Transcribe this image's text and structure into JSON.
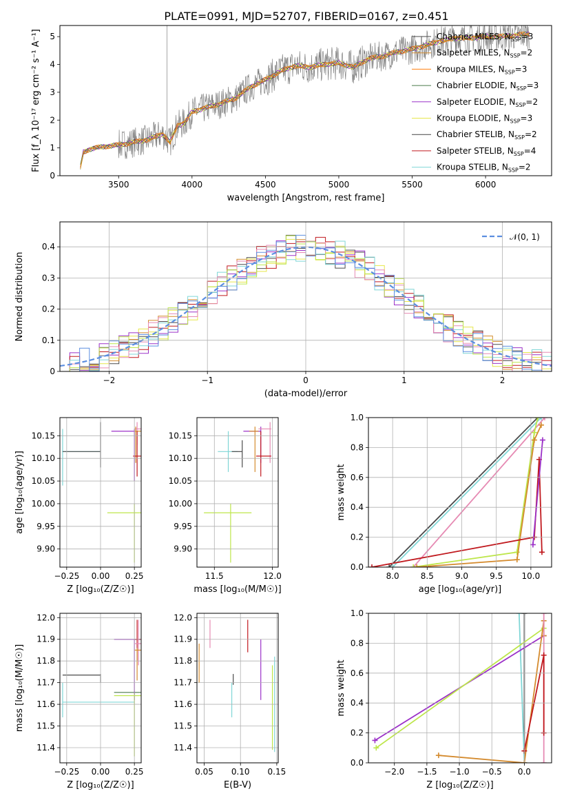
{
  "figure": {
    "title": "PLATE=0991, MJD=52707, FIBERID=0167, z=0.451"
  },
  "palette": {
    "Chabrier MILES": "#4a4a4a",
    "Salpeter MILES": "#d48a2d",
    "Kroupa MILES": "#ff7f0e",
    "Chabrier ELODIE": "#4a7a4a",
    "Salpeter ELODIE": "#9b30c8",
    "Kroupa ELODIE": "#e6e64a",
    "Chabrier STELIB": "#444444",
    "Salpeter STELIB": "#c0181d",
    "Kroupa STELIB": "#7fd6d6",
    "gaussian": "#5b8ee0",
    "data": "#808080",
    "pink": "#e68ab3",
    "lime": "#bde64a"
  },
  "chart_data": [
    {
      "id": "spectrum",
      "type": "line",
      "xlabel": "wavelength [Angstrom, rest frame]",
      "ylabel": "Flux [f_λ 10⁻¹⁷ erg cm⁻² s⁻¹ A⁻¹]",
      "xlim": [
        3100,
        6450
      ],
      "ylim": [
        0,
        5.4
      ],
      "xticks": [
        3500,
        4000,
        4500,
        5000,
        5500,
        6000
      ],
      "yticks": [
        0,
        1,
        2,
        3,
        4,
        5
      ],
      "grid": false,
      "legend_position": "top-right",
      "legend": [
        {
          "label": "Chabrier MILES, N",
          "sub": "SSP",
          "tail": "=3",
          "color": "#4a4a4a"
        },
        {
          "label": "Salpeter MILES, N",
          "sub": "SSP",
          "tail": "=2",
          "color": "#d48a2d"
        },
        {
          "label": "Kroupa MILES, N",
          "sub": "SSP",
          "tail": "=3",
          "color": "#ff7f0e"
        },
        {
          "label": "Chabrier ELODIE, N",
          "sub": "SSP",
          "tail": "=3",
          "color": "#4a7a4a"
        },
        {
          "label": "Salpeter ELODIE, N",
          "sub": "SSP",
          "tail": "=2",
          "color": "#9b30c8"
        },
        {
          "label": "Kroupa ELODIE, N",
          "sub": "SSP",
          "tail": "=3",
          "color": "#e6e64a"
        },
        {
          "label": "Chabrier STELIB, N",
          "sub": "SSP",
          "tail": "=2",
          "color": "#444444"
        },
        {
          "label": "Salpeter STELIB, N",
          "sub": "SSP",
          "tail": "=4",
          "color": "#c0181d"
        },
        {
          "label": "Kroupa STELIB, N",
          "sub": "SSP",
          "tail": "=2",
          "color": "#7fd6d6"
        }
      ],
      "model_x": [
        3240,
        3260,
        3300,
        3400,
        3500,
        3600,
        3700,
        3800,
        3850,
        3900,
        3950,
        4000,
        4100,
        4200,
        4300,
        4400,
        4500,
        4600,
        4700,
        4800,
        4900,
        5000,
        5100,
        5200,
        5300,
        5400,
        5500,
        5600,
        5700,
        5800,
        5900,
        6000,
        6100,
        6200,
        6300
      ],
      "model_y": [
        0.3,
        0.85,
        0.95,
        1.05,
        1.1,
        1.2,
        1.3,
        1.5,
        1.2,
        1.8,
        1.9,
        2.3,
        2.45,
        2.6,
        2.8,
        3.2,
        3.45,
        3.75,
        3.95,
        3.9,
        4.0,
        4.05,
        3.9,
        4.2,
        4.3,
        4.45,
        4.55,
        4.7,
        4.85,
        4.95,
        4.95,
        5.0,
        5.0,
        5.05,
        5.1
      ],
      "data_noise_start": 3500,
      "data_noise_amplitude": 0.55
    },
    {
      "id": "residuals",
      "type": "bar",
      "xlabel": "(data-model)/error",
      "ylabel": "Normed distribution",
      "xlim": [
        -2.5,
        2.5
      ],
      "ylim": [
        0,
        0.48
      ],
      "xticks": [
        -2,
        -1,
        0,
        1,
        2
      ],
      "yticks": [
        0,
        0.1,
        0.2,
        0.3,
        0.4
      ],
      "grid": true,
      "legend_position": "top-right",
      "legend": [
        {
          "label": "𝒩(0, 1)",
          "color": "#5b8ee0",
          "dashed": true
        }
      ],
      "bin_width": 0.1,
      "series_colors": [
        "#4a4a4a",
        "#d48a2d",
        "#e6e64a",
        "#9b30c8",
        "#c0181d",
        "#7fd6d6",
        "#e68ab3",
        "#bde64a",
        "#5b8ee0"
      ]
    },
    {
      "id": "age_vs_Z",
      "type": "scatter",
      "xlabel": "Z [log₁₀(Z/Z☉)]",
      "ylabel": "age  [log₁₀(age/yr)]",
      "xlim": [
        -0.3,
        0.3
      ],
      "ylim": [
        9.86,
        10.19
      ],
      "xticks": [
        -0.25,
        0.0,
        0.25
      ],
      "xticklabels": [
        "−0.25",
        "0.00",
        "0.25"
      ],
      "yticks": [
        9.9,
        9.95,
        10.0,
        10.05,
        10.1,
        10.15
      ],
      "yticklabels": [
        "9.90",
        "9.95",
        "10.00",
        "10.05",
        "10.10",
        "10.15"
      ],
      "grid": true,
      "points": [
        {
          "x": -0.28,
          "y": 10.115,
          "x0": -0.28,
          "x1": 0.0,
          "y0": 10.04,
          "y1": 10.165,
          "color": "#7fd6d6"
        },
        {
          "x": 0.0,
          "y": 10.115,
          "x0": -0.28,
          "x1": 0.0,
          "y0": 10.08,
          "y1": 10.18,
          "color": "#4a4a4a"
        },
        {
          "x": 0.25,
          "y": 10.16,
          "x0": 0.08,
          "x1": 0.25,
          "y0": 10.05,
          "y1": 10.165,
          "color": "#9b30c8"
        },
        {
          "x": 0.27,
          "y": 10.165,
          "x0": 0.25,
          "x1": 0.3,
          "y0": 10.13,
          "y1": 10.18,
          "color": "#e68ab3"
        },
        {
          "x": 0.26,
          "y": 10.16,
          "x0": 0.25,
          "x1": 0.3,
          "y0": 10.09,
          "y1": 10.17,
          "color": "#d48a2d"
        },
        {
          "x": 0.27,
          "y": 10.105,
          "x0": 0.24,
          "x1": 0.3,
          "y0": 10.06,
          "y1": 10.16,
          "color": "#c0181d"
        },
        {
          "x": 0.25,
          "y": 9.98,
          "x0": 0.05,
          "x1": 0.3,
          "y0": 9.87,
          "y1": 10.0,
          "color": "#bde64a"
        }
      ]
    },
    {
      "id": "age_vs_mass",
      "type": "scatter",
      "xlabel": "mass [log₁₀(M/M☉)]",
      "ylabel": "",
      "xlim": [
        11.35,
        12.05
      ],
      "ylim": [
        9.86,
        10.19
      ],
      "xticks": [
        11.5,
        12.0
      ],
      "xticklabels": [
        "11.5",
        "12.0"
      ],
      "yticks": [
        9.9,
        9.95,
        10.0,
        10.05,
        10.1,
        10.15
      ],
      "yticklabels": [
        "9.90",
        "9.95",
        "10.00",
        "10.05",
        "10.10",
        "10.15"
      ],
      "grid": true,
      "points": [
        {
          "x": 11.62,
          "y": 10.115,
          "x0": 11.53,
          "x1": 11.7,
          "y0": 10.07,
          "y1": 10.16,
          "color": "#7fd6d6"
        },
        {
          "x": 11.74,
          "y": 10.115,
          "x0": 11.65,
          "x1": 11.74,
          "y0": 10.08,
          "y1": 10.14,
          "color": "#4a4a4a"
        },
        {
          "x": 11.9,
          "y": 10.16,
          "x0": 11.75,
          "x1": 11.9,
          "y0": 10.09,
          "y1": 10.17,
          "color": "#9b30c8"
        },
        {
          "x": 11.98,
          "y": 10.165,
          "x0": 11.88,
          "x1": 11.99,
          "y0": 10.09,
          "y1": 10.18,
          "color": "#e68ab3"
        },
        {
          "x": 11.85,
          "y": 10.16,
          "x0": 11.8,
          "x1": 11.88,
          "y0": 10.07,
          "y1": 10.17,
          "color": "#d48a2d"
        },
        {
          "x": 11.9,
          "y": 10.105,
          "x0": 11.86,
          "x1": 11.99,
          "y0": 10.06,
          "y1": 10.16,
          "color": "#c0181d"
        },
        {
          "x": 11.64,
          "y": 9.98,
          "x0": 11.41,
          "x1": 11.82,
          "y0": 9.87,
          "y1": 10.0,
          "color": "#bde64a"
        }
      ]
    },
    {
      "id": "mass_weight_vs_age",
      "type": "line",
      "xlabel": "age  [log₁₀(age/yr)]",
      "ylabel": "mass weight",
      "xlim": [
        7.65,
        10.3
      ],
      "ylim": [
        0,
        1.0
      ],
      "xticks": [
        8.0,
        8.5,
        9.0,
        9.5,
        10.0
      ],
      "xticklabels": [
        "8.0",
        "8.5",
        "9.0",
        "9.5",
        "10.0"
      ],
      "yticks": [
        0,
        0.2,
        0.4,
        0.6,
        0.8,
        1.0
      ],
      "yticklabels": [
        "0.0",
        "0.2",
        "0.4",
        "0.6",
        "0.8",
        "1.0"
      ],
      "grid": true,
      "series": [
        {
          "color": "#4a4a4a",
          "x": [
            7.95,
            10.1
          ],
          "y": [
            0.0,
            1.0
          ]
        },
        {
          "color": "#7fd6d6",
          "x": [
            8.0,
            10.15
          ],
          "y": [
            0.0,
            1.0
          ]
        },
        {
          "color": "#e68ab3",
          "x": [
            8.3,
            10.2
          ],
          "y": [
            0.0,
            1.0
          ]
        },
        {
          "color": "#bde64a",
          "x": [
            8.3,
            9.8,
            10.05,
            10.1
          ],
          "y": [
            0.0,
            0.1,
            0.9,
            1.0
          ]
        },
        {
          "color": "#d48a2d",
          "x": [
            8.35,
            9.8,
            10.05,
            10.15
          ],
          "y": [
            0.0,
            0.05,
            0.85,
            0.95
          ]
        },
        {
          "color": "#c0181d",
          "x": [
            7.7,
            10.05,
            10.12,
            10.16
          ],
          "y": [
            0.0,
            0.2,
            0.72,
            0.1
          ]
        },
        {
          "color": "#9b30c8",
          "x": [
            10.03,
            10.17
          ],
          "y": [
            0.15,
            0.85
          ]
        }
      ]
    },
    {
      "id": "mass_vs_Z",
      "type": "scatter",
      "xlabel": "Z [log₁₀(Z/Z☉)]",
      "ylabel": "mass [log₁₀(M/M☉)]",
      "xlim": [
        -0.3,
        0.3
      ],
      "ylim": [
        11.33,
        12.02
      ],
      "xticks": [
        -0.25,
        0.0,
        0.25
      ],
      "xticklabels": [
        "−0.25",
        "0.00",
        "0.25"
      ],
      "yticks": [
        11.4,
        11.5,
        11.6,
        11.7,
        11.8,
        11.9,
        12.0
      ],
      "yticklabels": [
        "11.4",
        "11.5",
        "11.6",
        "11.7",
        "11.8",
        "11.9",
        "12.0"
      ],
      "grid": true,
      "points": [
        {
          "x": -0.28,
          "y": 11.61,
          "x0": -0.28,
          "x1": 0.25,
          "y0": 11.54,
          "y1": 11.7,
          "color": "#7fd6d6"
        },
        {
          "x": 0.0,
          "y": 11.735,
          "x0": -0.28,
          "x1": 0.0,
          "y0": 11.7,
          "y1": 11.74,
          "color": "#4a4a4a"
        },
        {
          "x": 0.25,
          "y": 11.655,
          "x0": 0.1,
          "x1": 0.3,
          "y0": 11.62,
          "y1": 11.66,
          "color": "#4a7a4a"
        },
        {
          "x": 0.25,
          "y": 11.9,
          "x0": 0.1,
          "x1": 0.3,
          "y0": 11.62,
          "y1": 11.9,
          "color": "#9b30c8"
        },
        {
          "x": 0.27,
          "y": 11.9,
          "x0": 0.25,
          "x1": 0.3,
          "y0": 11.8,
          "y1": 11.99,
          "color": "#c0181d"
        },
        {
          "x": 0.28,
          "y": 11.88,
          "x0": 0.25,
          "x1": 0.3,
          "y0": 11.78,
          "y1": 11.99,
          "color": "#e68ab3"
        },
        {
          "x": 0.27,
          "y": 11.85,
          "x0": 0.25,
          "x1": 0.3,
          "y0": 11.71,
          "y1": 11.86,
          "color": "#d48a2d"
        },
        {
          "x": 0.25,
          "y": 11.64,
          "x0": 0.1,
          "x1": 0.3,
          "y0": 11.36,
          "y1": 11.65,
          "color": "#bde64a"
        }
      ]
    },
    {
      "id": "mass_vs_ebv",
      "type": "scatter",
      "xlabel": "E(B-V)",
      "ylabel": "",
      "xlim": [
        0.04,
        0.152
      ],
      "ylim": [
        11.33,
        12.02
      ],
      "xticks": [
        0.05,
        0.1,
        0.15
      ],
      "xticklabels": [
        "0.05",
        "0.10",
        "0.15"
      ],
      "yticks": [
        11.4,
        11.5,
        11.6,
        11.7,
        11.8,
        11.9,
        12.0
      ],
      "yticklabels": [
        "11.4",
        "11.5",
        "11.6",
        "11.7",
        "11.8",
        "11.9",
        "12.0"
      ],
      "grid": true,
      "points": [
        {
          "x": 0.043,
          "y": 11.8,
          "y0": 11.7,
          "y1": 11.88,
          "color": "#d48a2d"
        },
        {
          "x": 0.058,
          "y": 11.92,
          "y0": 11.86,
          "y1": 11.99,
          "color": "#e68ab3"
        },
        {
          "x": 0.088,
          "y": 11.6,
          "y0": 11.54,
          "y1": 11.7,
          "color": "#7fd6d6"
        },
        {
          "x": 0.09,
          "y": 11.72,
          "y0": 11.69,
          "y1": 11.74,
          "color": "#4a4a4a"
        },
        {
          "x": 0.11,
          "y": 11.9,
          "y0": 11.84,
          "y1": 11.99,
          "color": "#c0181d"
        },
        {
          "x": 0.128,
          "y": 11.76,
          "y0": 11.62,
          "y1": 11.9,
          "color": "#9b30c8"
        },
        {
          "x": 0.144,
          "y": 11.55,
          "y0": 11.39,
          "y1": 11.78,
          "color": "#bde64a"
        },
        {
          "x": 0.147,
          "y": 11.6,
          "y0": 11.38,
          "y1": 11.82,
          "color": "#7fd6d6"
        }
      ]
    },
    {
      "id": "mass_weight_vs_Z",
      "type": "line",
      "xlabel": "Z [log₁₀(Z/Z☉)]",
      "ylabel": "mass weight",
      "xlim": [
        -2.4,
        0.42
      ],
      "ylim": [
        0,
        1.0
      ],
      "xticks": [
        -2.0,
        -1.5,
        -1.0,
        -0.5,
        0.0
      ],
      "xticklabels": [
        "−2.0",
        "−1.5",
        "−1.0",
        "−0.5",
        "0.0"
      ],
      "yticks": [
        0,
        0.2,
        0.4,
        0.6,
        0.8,
        1.0
      ],
      "yticklabels": [
        "0.0",
        "0.2",
        "0.4",
        "0.6",
        "0.8",
        "1.0"
      ],
      "grid": true,
      "series": [
        {
          "color": "#4a4a4a",
          "x": [
            0.0,
            0.0
          ],
          "y": [
            0.0,
            1.0
          ]
        },
        {
          "color": "#7fd6d6",
          "x": [
            -0.08,
            0.0
          ],
          "y": [
            1.0,
            0.0
          ]
        },
        {
          "color": "#9b30c8",
          "x": [
            -2.3,
            0.3
          ],
          "y": [
            0.15,
            0.85
          ]
        },
        {
          "color": "#bde64a",
          "x": [
            -2.28,
            0.3
          ],
          "y": [
            0.1,
            0.9
          ]
        },
        {
          "color": "#d48a2d",
          "x": [
            -1.32,
            0.0,
            0.3,
            0.3
          ],
          "y": [
            0.05,
            0.0,
            0.95,
            0.85
          ]
        },
        {
          "color": "#e68ab3",
          "x": [
            0.3,
            0.3
          ],
          "y": [
            0.0,
            1.0
          ]
        },
        {
          "color": "#c0181d",
          "x": [
            0.0,
            0.3,
            0.3
          ],
          "y": [
            0.08,
            0.72,
            0.2
          ]
        }
      ]
    }
  ]
}
